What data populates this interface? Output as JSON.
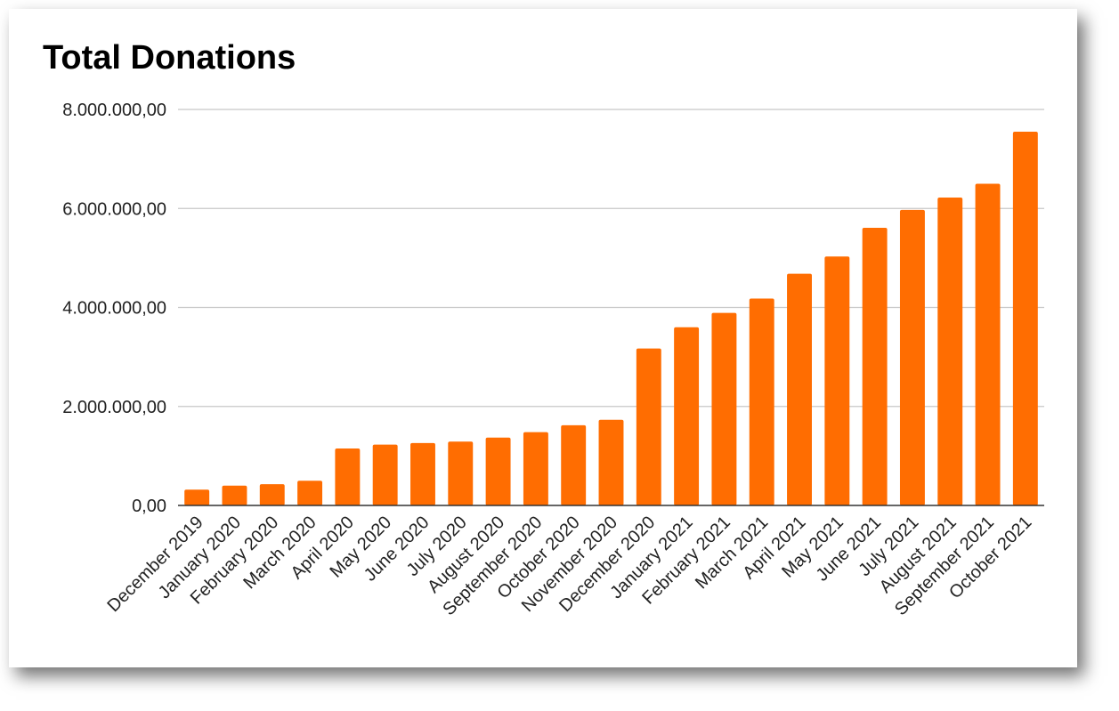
{
  "chart_data": {
    "type": "bar",
    "title": "Total Donations",
    "xlabel": "",
    "ylabel": "",
    "ylim": [
      0,
      8000000
    ],
    "yticks": [
      0,
      2000000,
      4000000,
      6000000,
      8000000
    ],
    "ytick_labels": [
      "0,00",
      "2.000.000,00",
      "4.000.000,00",
      "6.000.000,00",
      "8.000.000,00"
    ],
    "grid": true,
    "legend": "none",
    "bar_color": "#ff6d01",
    "categories": [
      "December 2019",
      "January 2020",
      "February 2020",
      "March 2020",
      "April 2020",
      "May 2020",
      "June 2020",
      "July 2020",
      "August 2020",
      "September 2020",
      "October 2020",
      "November 2020",
      "December 2020",
      "January 2021",
      "February 2021",
      "March 2021",
      "April 2021",
      "May 2021",
      "June 2021",
      "July 2021",
      "August 2021",
      "September 2021",
      "October 2021"
    ],
    "values": [
      320000,
      400000,
      430000,
      500000,
      1150000,
      1230000,
      1260000,
      1290000,
      1370000,
      1480000,
      1620000,
      1730000,
      3170000,
      3600000,
      3890000,
      4180000,
      4680000,
      5030000,
      5610000,
      5970000,
      6220000,
      6500000,
      7550000
    ]
  }
}
